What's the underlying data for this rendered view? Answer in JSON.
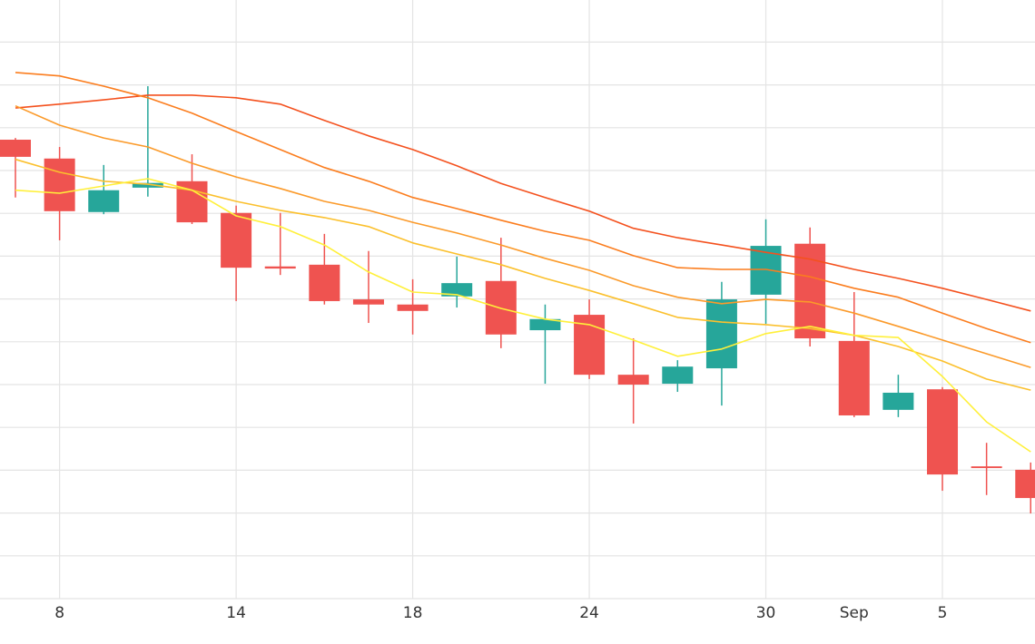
{
  "chart_data": {
    "type": "candlestick",
    "categories": [
      null,
      "8",
      null,
      null,
      null,
      "14",
      null,
      null,
      null,
      "18",
      null,
      null,
      null,
      "24",
      null,
      null,
      null,
      "30",
      null,
      "Sep",
      null,
      "5",
      null,
      null
    ],
    "open": [
      10.72,
      10.28,
      9.03,
      9.6,
      9.75,
      9.01,
      7.76,
      7.8,
      6.99,
      6.87,
      7.06,
      7.42,
      6.27,
      6.63,
      5.23,
      5.02,
      5.38,
      7.1,
      8.29,
      6.02,
      4.41,
      4.89,
      3.09,
      3.01
    ],
    "high": [
      10.76,
      10.55,
      10.13,
      11.97,
      10.38,
      9.18,
      9.01,
      8.52,
      8.12,
      7.46,
      7.99,
      8.43,
      6.87,
      6.99,
      6.08,
      5.57,
      7.4,
      8.86,
      8.67,
      7.16,
      5.23,
      4.94,
      3.64,
      3.18
    ],
    "low": [
      9.37,
      8.37,
      8.98,
      9.39,
      8.75,
      6.95,
      7.56,
      6.87,
      6.44,
      6.17,
      6.8,
      5.85,
      5.02,
      5.13,
      4.09,
      4.83,
      4.51,
      6.42,
      5.89,
      4.24,
      4.24,
      2.52,
      2.42,
      1.99
    ],
    "close": [
      10.32,
      9.05,
      9.54,
      9.71,
      8.79,
      7.73,
      7.71,
      6.95,
      6.87,
      6.72,
      7.37,
      6.17,
      6.53,
      5.23,
      5.0,
      5.42,
      6.99,
      8.24,
      6.08,
      4.28,
      4.81,
      2.9,
      3.05,
      2.35
    ],
    "up_color": "#26a69a",
    "down_color": "#ef5350",
    "lines": [
      {
        "color": "#f4511e",
        "values": [
          11.46,
          11.55,
          11.65,
          11.76,
          11.76,
          11.7,
          11.55,
          11.17,
          10.81,
          10.49,
          10.11,
          9.7,
          9.37,
          9.05,
          8.65,
          8.43,
          8.26,
          8.09,
          7.93,
          7.69,
          7.48,
          7.25,
          6.99,
          6.72
        ]
      },
      {
        "color": "#fb7d1e",
        "values": [
          12.29,
          12.21,
          11.97,
          11.7,
          11.34,
          10.91,
          10.49,
          10.07,
          9.75,
          9.37,
          9.11,
          8.84,
          8.58,
          8.37,
          8.01,
          7.73,
          7.69,
          7.69,
          7.52,
          7.25,
          7.04,
          6.67,
          6.31,
          5.98
        ]
      },
      {
        "color": "#fb9a2a",
        "values": [
          11.51,
          11.06,
          10.76,
          10.55,
          10.17,
          9.85,
          9.58,
          9.28,
          9.07,
          8.79,
          8.54,
          8.26,
          7.95,
          7.67,
          7.31,
          7.04,
          6.89,
          6.99,
          6.93,
          6.67,
          6.36,
          6.04,
          5.72,
          5.4
        ]
      },
      {
        "color": "#fbc02d",
        "values": [
          10.26,
          9.96,
          9.75,
          9.68,
          9.54,
          9.28,
          9.07,
          8.9,
          8.69,
          8.31,
          8.05,
          7.8,
          7.48,
          7.2,
          6.89,
          6.57,
          6.46,
          6.4,
          6.31,
          6.15,
          5.89,
          5.55,
          5.13,
          4.87
        ]
      },
      {
        "color": "#fff03a",
        "values": [
          9.54,
          9.47,
          9.64,
          9.81,
          9.54,
          8.94,
          8.69,
          8.26,
          7.63,
          7.16,
          7.1,
          6.78,
          6.53,
          6.4,
          6.04,
          5.66,
          5.83,
          6.19,
          6.36,
          6.15,
          6.1,
          5.19,
          4.13,
          3.43
        ]
      }
    ],
    "ylim": [
      0,
      14
    ],
    "yticks": [
      0,
      1,
      2,
      3,
      4,
      5,
      6,
      7,
      8,
      9,
      10,
      11,
      12,
      13
    ],
    "grid": true
  }
}
